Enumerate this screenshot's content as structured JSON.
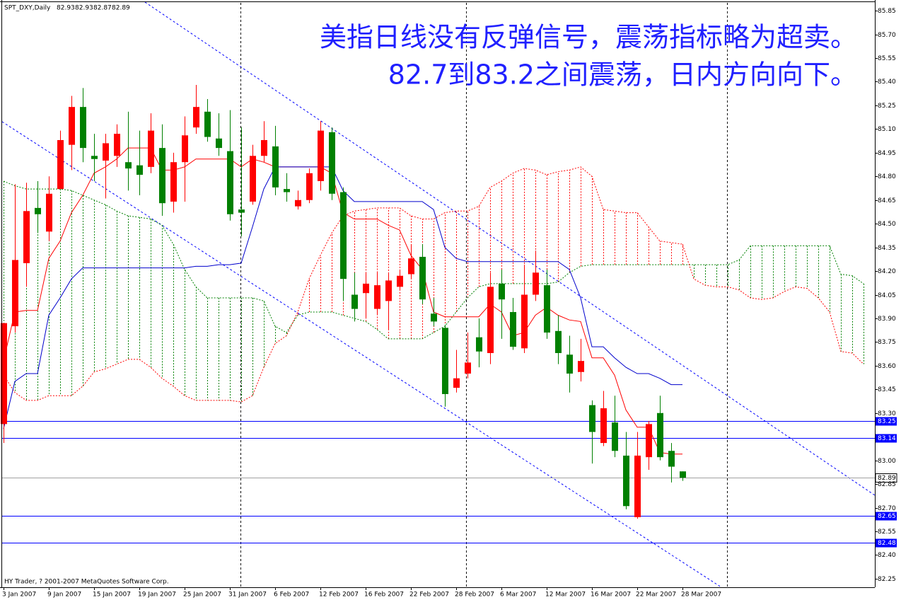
{
  "chart_data": {
    "type": "candlestick",
    "symbol": "SPT_DXY,Daily",
    "annotations": [
      "美指日线没有反弹信号，震荡指标略为超卖。",
      "82.7到83.2之间震荡，日内方向向下。"
    ],
    "footer": "HY Trader, ? 2001-2007 MetaQuotes Software Corp.",
    "categories": [
      "3 Jan 2007",
      null,
      null,
      null,
      "9 Jan 2007",
      null,
      null,
      null,
      "15 Jan 2007",
      null,
      null,
      null,
      "19 Jan 2007",
      null,
      null,
      null,
      "25 Jan 2007",
      null,
      null,
      null,
      "31 Jan 2007",
      null,
      null,
      null,
      "6 Feb 2007",
      null,
      null,
      null,
      "12 Feb 2007",
      null,
      null,
      null,
      "16 Feb 2007",
      null,
      null,
      null,
      "22 Feb 2007",
      null,
      null,
      null,
      "28 Feb 2007",
      null,
      null,
      null,
      "6 Mar 2007",
      null,
      null,
      null,
      "12 Mar 2007",
      null,
      null,
      null,
      "16 Mar 2007",
      null,
      null,
      null,
      "22 Mar 2007",
      null,
      null,
      null,
      "28 Mar 2007"
    ],
    "open": [
      83.23,
      83.85,
      84.25,
      84.6,
      84.45,
      84.72,
      85.0,
      85.24,
      84.93,
      84.9,
      84.93,
      84.89,
      84.87,
      84.86,
      84.98,
      84.64,
      84.89,
      85.11,
      85.21,
      85.04,
      84.96,
      84.59,
      84.64,
      84.93,
      84.99,
      84.72,
      84.61,
      84.65,
      84.77,
      85.08,
      84.7,
      84.05,
      84.06,
      83.96,
      84.01,
      84.1,
      84.18,
      84.29,
      83.93,
      83.84,
      83.46,
      83.55,
      83.78,
      83.68,
      84.12,
      83.94,
      83.71,
      84.05,
      84.11,
      83.82,
      83.67,
      83.56,
      83.35,
      83.11,
      83.24,
      83.03,
      82.64,
      83.02,
      83.3,
      83.06,
      82.93
    ],
    "high": [
      83.87,
      84.75,
      84.76,
      84.77,
      84.8,
      85.09,
      85.31,
      85.36,
      85.07,
      85.07,
      85.13,
      85.21,
      85.09,
      85.2,
      85.13,
      84.95,
      85.18,
      85.38,
      85.29,
      85.2,
      85.22,
      85.11,
      85.0,
      85.15,
      85.12,
      84.82,
      84.71,
      84.85,
      85.15,
      85.11,
      84.73,
      84.19,
      84.19,
      84.19,
      84.19,
      84.21,
      84.37,
      84.37,
      84.03,
      83.86,
      83.7,
      83.81,
      83.9,
      84.19,
      84.21,
      84.03,
      84.24,
      84.33,
      84.21,
      83.92,
      83.79,
      83.77,
      83.38,
      83.44,
      83.41,
      83.18,
      83.18,
      83.25,
      83.41,
      83.11,
      82.93
    ],
    "low": [
      83.11,
      83.81,
      84.1,
      84.44,
      84.39,
      84.72,
      84.84,
      84.89,
      84.77,
      84.66,
      84.86,
      84.71,
      84.68,
      84.82,
      84.55,
      84.57,
      84.64,
      85.07,
      85.02,
      84.93,
      84.52,
      84.42,
      84.62,
      84.89,
      84.68,
      84.64,
      84.59,
      84.63,
      84.71,
      84.65,
      84.01,
      83.88,
      83.9,
      83.92,
      83.83,
      84.08,
      84.15,
      83.99,
      83.85,
      83.34,
      83.43,
      83.52,
      83.59,
      83.61,
      83.77,
      83.7,
      83.68,
      84.01,
      83.77,
      83.61,
      83.43,
      83.5,
      82.98,
      83.09,
      83.02,
      82.69,
      82.63,
      82.94,
      83.0,
      82.86,
      82.87
    ],
    "close": [
      83.87,
      84.27,
      84.58,
      84.56,
      84.69,
      85.03,
      85.24,
      84.98,
      84.91,
      85.01,
      85.07,
      84.85,
      84.81,
      85.09,
      84.63,
      84.89,
      85.06,
      85.24,
      85.05,
      84.98,
      84.56,
      84.57,
      84.93,
      85.03,
      84.73,
      84.7,
      84.65,
      84.82,
      85.09,
      84.69,
      84.15,
      83.96,
      84.12,
      84.11,
      84.14,
      84.17,
      84.28,
      84.02,
      83.88,
      83.42,
      83.52,
      83.62,
      83.69,
      84.1,
      84.02,
      83.72,
      84.05,
      84.19,
      83.81,
      83.68,
      83.55,
      83.63,
      83.18,
      83.33,
      83.06,
      82.71,
      83.03,
      83.23,
      83.02,
      82.96,
      82.89
    ],
    "up_color": "#ff0000",
    "down_color": "#008000",
    "indicators": [
      {
        "color": "#ff0000",
        "values": [
          83.63,
          83.94,
          83.95,
          83.95,
          84.28,
          84.39,
          84.57,
          84.68,
          84.82,
          84.86,
          84.91,
          84.98,
          84.98,
          84.98,
          84.84,
          84.84,
          84.86,
          84.91,
          84.91,
          84.91,
          84.91,
          84.86,
          84.91,
          84.89,
          84.86,
          84.86,
          84.86,
          84.86,
          84.86,
          84.82,
          84.57,
          84.53,
          84.53,
          84.53,
          84.49,
          84.46,
          84.3,
          84.21,
          83.94,
          83.91,
          83.91,
          83.91,
          83.91,
          83.99,
          83.94,
          83.79,
          83.81,
          83.92,
          83.97,
          83.92,
          83.89,
          83.88,
          83.65,
          83.65,
          83.54,
          83.32,
          83.21,
          83.21,
          83.05,
          83.04,
          83.04
        ]
      },
      {
        "color": "#0000cc",
        "values": [
          83.2,
          83.5,
          83.55,
          83.55,
          83.92,
          84.03,
          84.15,
          84.22,
          84.22,
          84.22,
          84.22,
          84.22,
          84.22,
          84.22,
          84.22,
          84.22,
          84.22,
          84.23,
          84.23,
          84.24,
          84.24,
          84.25,
          84.48,
          84.72,
          84.86,
          84.86,
          84.86,
          84.86,
          84.86,
          84.86,
          84.71,
          84.64,
          84.64,
          84.64,
          84.64,
          84.64,
          84.64,
          84.64,
          84.59,
          84.35,
          84.28,
          84.26,
          84.26,
          84.26,
          84.26,
          84.26,
          84.26,
          84.26,
          84.26,
          84.26,
          84.21,
          84.03,
          83.72,
          83.72,
          83.65,
          83.59,
          83.55,
          83.55,
          83.52,
          83.48,
          83.48
        ]
      }
    ],
    "cloud": {
      "span_a": {
        "color": "#008000",
        "values": [
          84.77,
          84.74,
          84.72,
          84.72,
          84.72,
          84.72,
          84.71,
          84.68,
          84.65,
          84.62,
          84.58,
          84.55,
          84.54,
          84.53,
          84.49,
          84.37,
          84.21,
          84.1,
          84.03,
          84.03,
          84.03,
          84.03,
          84.03,
          84.01,
          83.85,
          83.81,
          83.92,
          83.94,
          83.94,
          83.94,
          83.92,
          83.9,
          83.88,
          83.83,
          83.77,
          83.77,
          83.77,
          83.77,
          83.81,
          83.85,
          83.94,
          84.03,
          84.1,
          84.12,
          84.12,
          84.12,
          84.12,
          84.12,
          84.12,
          84.13,
          84.19,
          84.23,
          84.24,
          84.24,
          84.24,
          84.24,
          84.24,
          84.24,
          84.24,
          84.24,
          84.24,
          84.24,
          84.24,
          84.24,
          84.24,
          84.27,
          84.36,
          84.36,
          84.36,
          84.36,
          84.36,
          84.36,
          84.36,
          84.36,
          84.18,
          84.17,
          84.12
        ]
      },
      "span_b": {
        "color": "#ff0000",
        "values": [
          83.54,
          83.43,
          83.38,
          83.38,
          83.41,
          83.41,
          83.41,
          83.47,
          83.56,
          83.58,
          83.61,
          83.64,
          83.64,
          83.59,
          83.52,
          83.47,
          83.41,
          83.38,
          83.38,
          83.38,
          83.38,
          83.37,
          83.41,
          83.59,
          83.74,
          83.79,
          83.94,
          84.15,
          84.3,
          84.44,
          84.55,
          84.58,
          84.59,
          84.6,
          84.6,
          84.6,
          84.55,
          84.53,
          84.53,
          84.57,
          84.58,
          84.58,
          84.61,
          84.73,
          84.77,
          84.82,
          84.85,
          84.84,
          84.81,
          84.83,
          84.84,
          84.86,
          84.8,
          84.59,
          84.58,
          84.57,
          84.57,
          84.48,
          84.39,
          84.38,
          84.37,
          84.15,
          84.11,
          84.1,
          84.1,
          84.08,
          84.03,
          84.02,
          84.03,
          84.07,
          84.1,
          84.09,
          84.03,
          83.94,
          83.69,
          83.68,
          83.61
        ]
      }
    },
    "levels": [
      83.25,
      83.14,
      82.65,
      82.48
    ],
    "level_color": "#0000ff",
    "price_line": 82.89,
    "price_line_color": "#a0a0a0",
    "ylim": [
      82.2,
      85.9
    ],
    "yticks": [
      85.85,
      {
        "value": 85.7,
        "label": "85.70"
      },
      85.55,
      {
        "value": 85.4,
        "label": "85.40"
      },
      85.25,
      {
        "value": 85.1,
        "label": "85.10"
      },
      84.95,
      {
        "value": 84.8,
        "label": "84.80"
      },
      84.65,
      {
        "value": 84.5,
        "label": "84.50"
      },
      84.35,
      {
        "value": 84.2,
        "label": "84.20"
      },
      84.05,
      {
        "value": 83.9,
        "label": "83.90"
      },
      83.75,
      {
        "value": 83.6,
        "label": "83.60"
      },
      83.45,
      {
        "value": 83.3,
        "label": "83.30"
      },
      {
        "value": 83,
        "label": "83.00"
      },
      82.85,
      {
        "value": 82.7,
        "label": "82.70"
      },
      82.55,
      {
        "value": 82.4,
        "label": "82.40"
      },
      82.25
    ]
  }
}
